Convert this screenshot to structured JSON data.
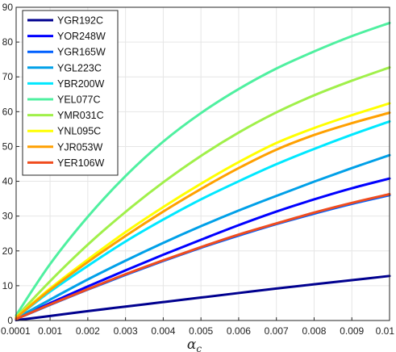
{
  "chart_data": {
    "type": "line",
    "title": "",
    "xlabel": "α",
    "xlabel_sub": "c",
    "ylabel": "",
    "xlim": [
      0.0001,
      0.01
    ],
    "ylim": [
      0,
      90
    ],
    "grid": true,
    "legend_position": "top-left",
    "x_ticks": [
      {
        "value": 0.0001,
        "label": "0.0001"
      },
      {
        "value": 0.001,
        "label": "0.001"
      },
      {
        "value": 0.002,
        "label": "0.002"
      },
      {
        "value": 0.003,
        "label": "0.003"
      },
      {
        "value": 0.004,
        "label": "0.004"
      },
      {
        "value": 0.005,
        "label": "0.005"
      },
      {
        "value": 0.006,
        "label": "0.006"
      },
      {
        "value": 0.007,
        "label": "0.007"
      },
      {
        "value": 0.008,
        "label": "0.008"
      },
      {
        "value": 0.009,
        "label": "0.009"
      },
      {
        "value": 0.01,
        "label": "0.01"
      }
    ],
    "y_ticks": [
      {
        "value": 0,
        "label": "0"
      },
      {
        "value": 10,
        "label": "10"
      },
      {
        "value": 20,
        "label": "20"
      },
      {
        "value": 30,
        "label": "30"
      },
      {
        "value": 40,
        "label": "40"
      },
      {
        "value": 50,
        "label": "50"
      },
      {
        "value": 60,
        "label": "60"
      },
      {
        "value": 70,
        "label": "70"
      },
      {
        "value": 80,
        "label": "80"
      },
      {
        "value": 90,
        "label": "90"
      }
    ],
    "x": [
      0.0001,
      0.001,
      0.002,
      0.003,
      0.004,
      0.005,
      0.006,
      0.007,
      0.008,
      0.009,
      0.01
    ],
    "series": [
      {
        "name": "YGR192C",
        "color": "#00008f",
        "values": [
          0.1,
          1.3,
          2.7,
          4.0,
          5.3,
          6.6,
          7.9,
          9.2,
          10.4,
          11.6,
          12.8
        ]
      },
      {
        "name": "YOR248W",
        "color": "#0000ff",
        "values": [
          0.5,
          5.0,
          9.8,
          14.4,
          18.9,
          23.2,
          27.4,
          31.3,
          34.8,
          38.0,
          40.8
        ]
      },
      {
        "name": "YGR165W",
        "color": "#0060ff",
        "values": [
          0.4,
          4.5,
          8.9,
          13.1,
          17.1,
          20.9,
          24.4,
          27.7,
          30.7,
          33.5,
          36.0
        ]
      },
      {
        "name": "YGL223C",
        "color": "#00a0e8",
        "values": [
          0.6,
          6.0,
          11.8,
          17.2,
          22.3,
          27.1,
          31.6,
          35.8,
          39.9,
          43.8,
          47.5
        ]
      },
      {
        "name": "YBR200W",
        "color": "#00e8ff",
        "values": [
          0.8,
          8.3,
          15.7,
          22.7,
          29.0,
          34.8,
          40.0,
          44.9,
          49.3,
          53.4,
          57.2
        ]
      },
      {
        "name": "YEL077C",
        "color": "#4ff0a0",
        "values": [
          1.5,
          16.2,
          29.8,
          41.5,
          51.4,
          59.6,
          66.5,
          72.4,
          77.3,
          81.7,
          85.5
        ]
      },
      {
        "name": "YMR031C",
        "color": "#a0f04a",
        "values": [
          1.0,
          11.3,
          21.8,
          31.2,
          39.7,
          47.3,
          54.0,
          59.8,
          64.7,
          68.9,
          72.7
        ]
      },
      {
        "name": "YNL095C",
        "color": "#ffff00",
        "values": [
          0.9,
          9.2,
          17.5,
          25.4,
          32.6,
          39.3,
          45.5,
          51.0,
          55.3,
          59.0,
          62.4
        ]
      },
      {
        "name": "YJR053W",
        "color": "#ffa000",
        "values": [
          0.8,
          8.8,
          16.8,
          24.3,
          31.3,
          37.8,
          43.8,
          49.1,
          53.3,
          56.7,
          59.7
        ]
      },
      {
        "name": "YER106W",
        "color": "#f04c1e",
        "values": [
          0.4,
          4.6,
          9.0,
          13.3,
          17.3,
          21.1,
          24.7,
          27.9,
          31.0,
          33.8,
          36.3
        ]
      }
    ]
  }
}
